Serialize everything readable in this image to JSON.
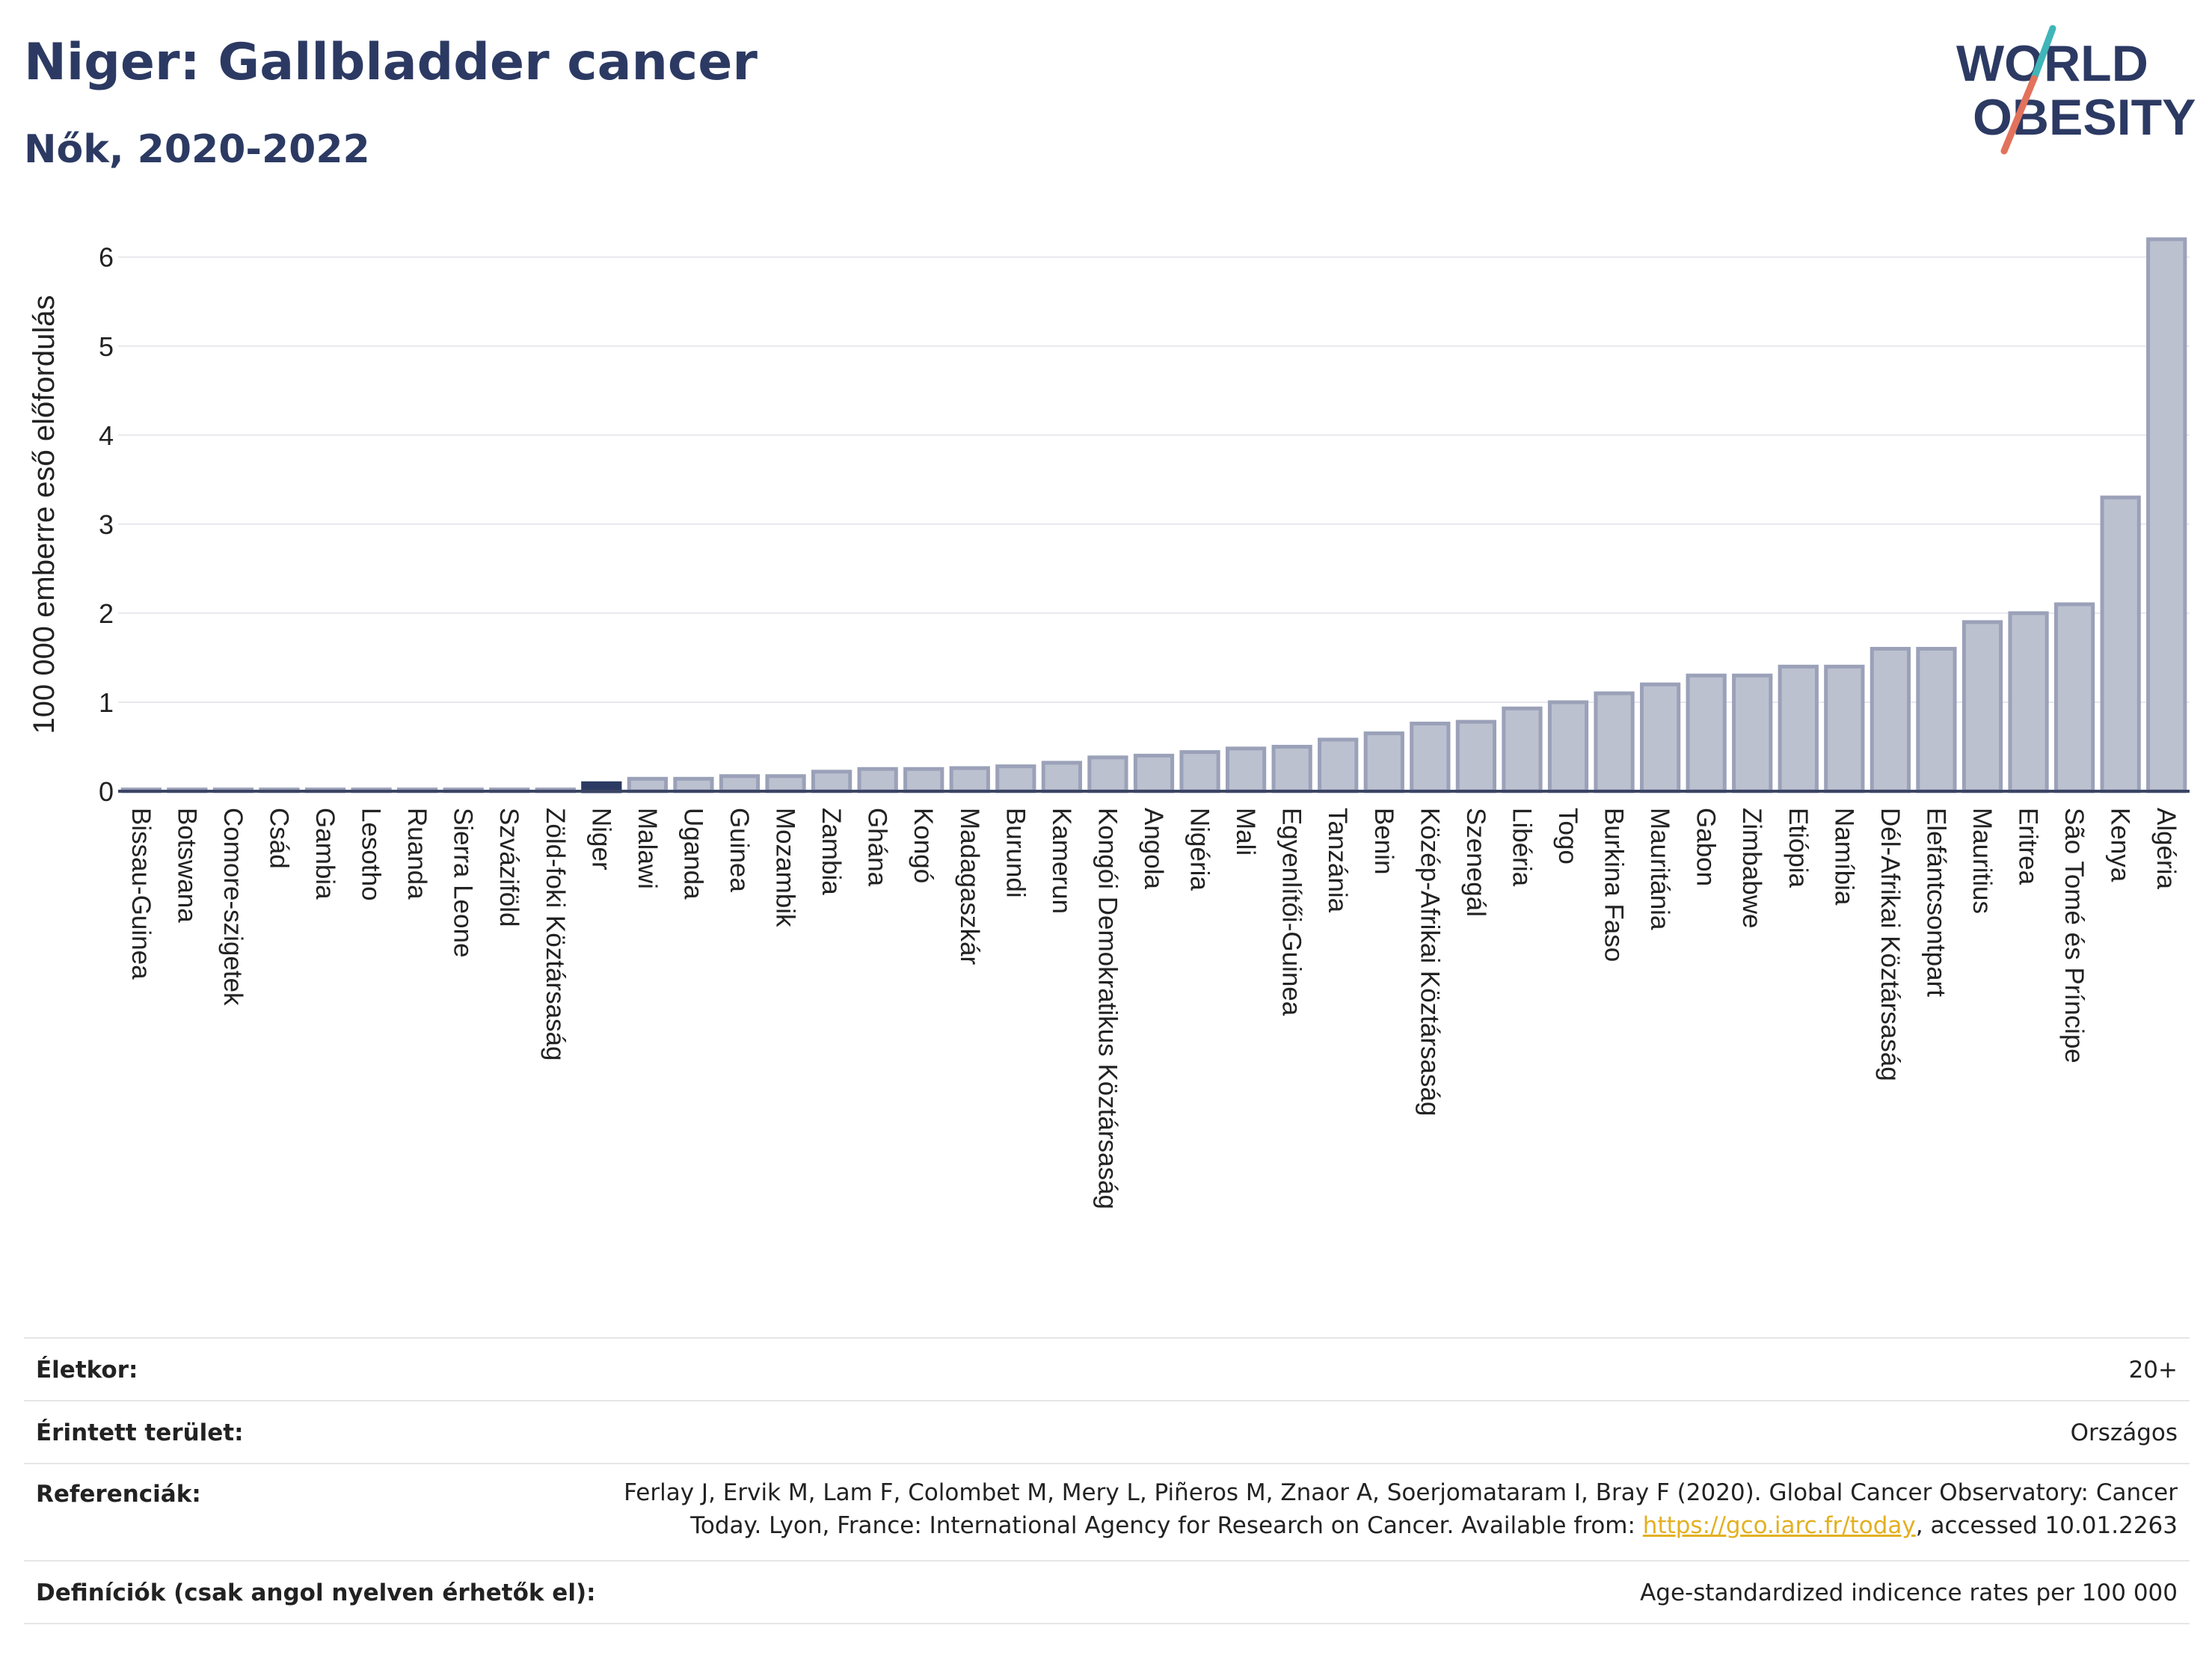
{
  "header": {
    "title": "Niger: Gallbladder cancer",
    "subtitle": "Nők, 2020-2022"
  },
  "logo": {
    "line1": "WORLD",
    "line2": "OBESITY",
    "accent_teal": "#3fb5b8",
    "accent_red": "#e2725b",
    "text_color": "#2c3a63"
  },
  "chart_data": {
    "type": "bar",
    "ylabel": "100 000 emberre eső előfordulás",
    "xlabel": "",
    "ylim": [
      0,
      6.3
    ],
    "yticks": [
      0,
      1,
      2,
      3,
      4,
      5,
      6
    ],
    "grid": true,
    "highlight": "Niger",
    "colors": {
      "bar": "#bcc1d0",
      "bar_edge": "#9aa1b8",
      "highlight": "#2c3a63"
    },
    "categories": [
      "Bissau-Guinea",
      "Botswana",
      "Comore-szigetek",
      "Csád",
      "Gambia",
      "Lesotho",
      "Ruanda",
      "Sierra Leone",
      "Szváziföld",
      "Zöld-foki Köztársaság",
      "Niger",
      "Malawi",
      "Uganda",
      "Guinea",
      "Mozambik",
      "Zambia",
      "Ghána",
      "Kongó",
      "Madagaszkár",
      "Burundi",
      "Kamerun",
      "Kongói Demokratikus Köztársaság",
      "Angola",
      "Nigéria",
      "Mali",
      "Egyenlítői-Guinea",
      "Tanzánia",
      "Benin",
      "Közép-Afrikai Köztársaság",
      "Szenegál",
      "Libéria",
      "Togo",
      "Burkina Faso",
      "Mauritánia",
      "Gabon",
      "Zimbabwe",
      "Etiópia",
      "Namíbia",
      "Dél-Afrikai Köztársaság",
      "Elefántcsontpart",
      "Mauritius",
      "Eritrea",
      "São Tomé és Príncipe",
      "Kenya",
      "Algéria"
    ],
    "values": [
      0.02,
      0.02,
      0.02,
      0.02,
      0.02,
      0.02,
      0.02,
      0.02,
      0.02,
      0.02,
      0.09,
      0.14,
      0.14,
      0.17,
      0.17,
      0.22,
      0.25,
      0.25,
      0.26,
      0.28,
      0.32,
      0.38,
      0.4,
      0.44,
      0.48,
      0.5,
      0.58,
      0.65,
      0.76,
      0.78,
      0.93,
      1.0,
      1.1,
      1.2,
      1.3,
      1.3,
      1.4,
      1.4,
      1.6,
      1.6,
      1.9,
      2.0,
      2.1,
      3.3,
      6.2
    ]
  },
  "meta": {
    "age_label": "Életkor:",
    "age_value": "20+",
    "area_label": "Érintett terület:",
    "area_value": "Országos",
    "ref_label": "Referenciák:",
    "ref_line1": "Ferlay J, Ervik M, Lam F, Colombet M, Mery L, Piñeros M, Znaor A, Soerjomataram I, Bray F (2020). Global Cancer Observatory: Cancer",
    "ref_line2_pre": "Today. Lyon, France: International Agency for Research on Cancer. Available from: ",
    "ref_link": "https://gco.iarc.fr/today",
    "ref_line2_post": ", accessed 10.01.2263",
    "def_label": "Definíciók (csak angol nyelven érhetők el):",
    "def_value": "Age-standardized indicence rates per 100 000"
  }
}
